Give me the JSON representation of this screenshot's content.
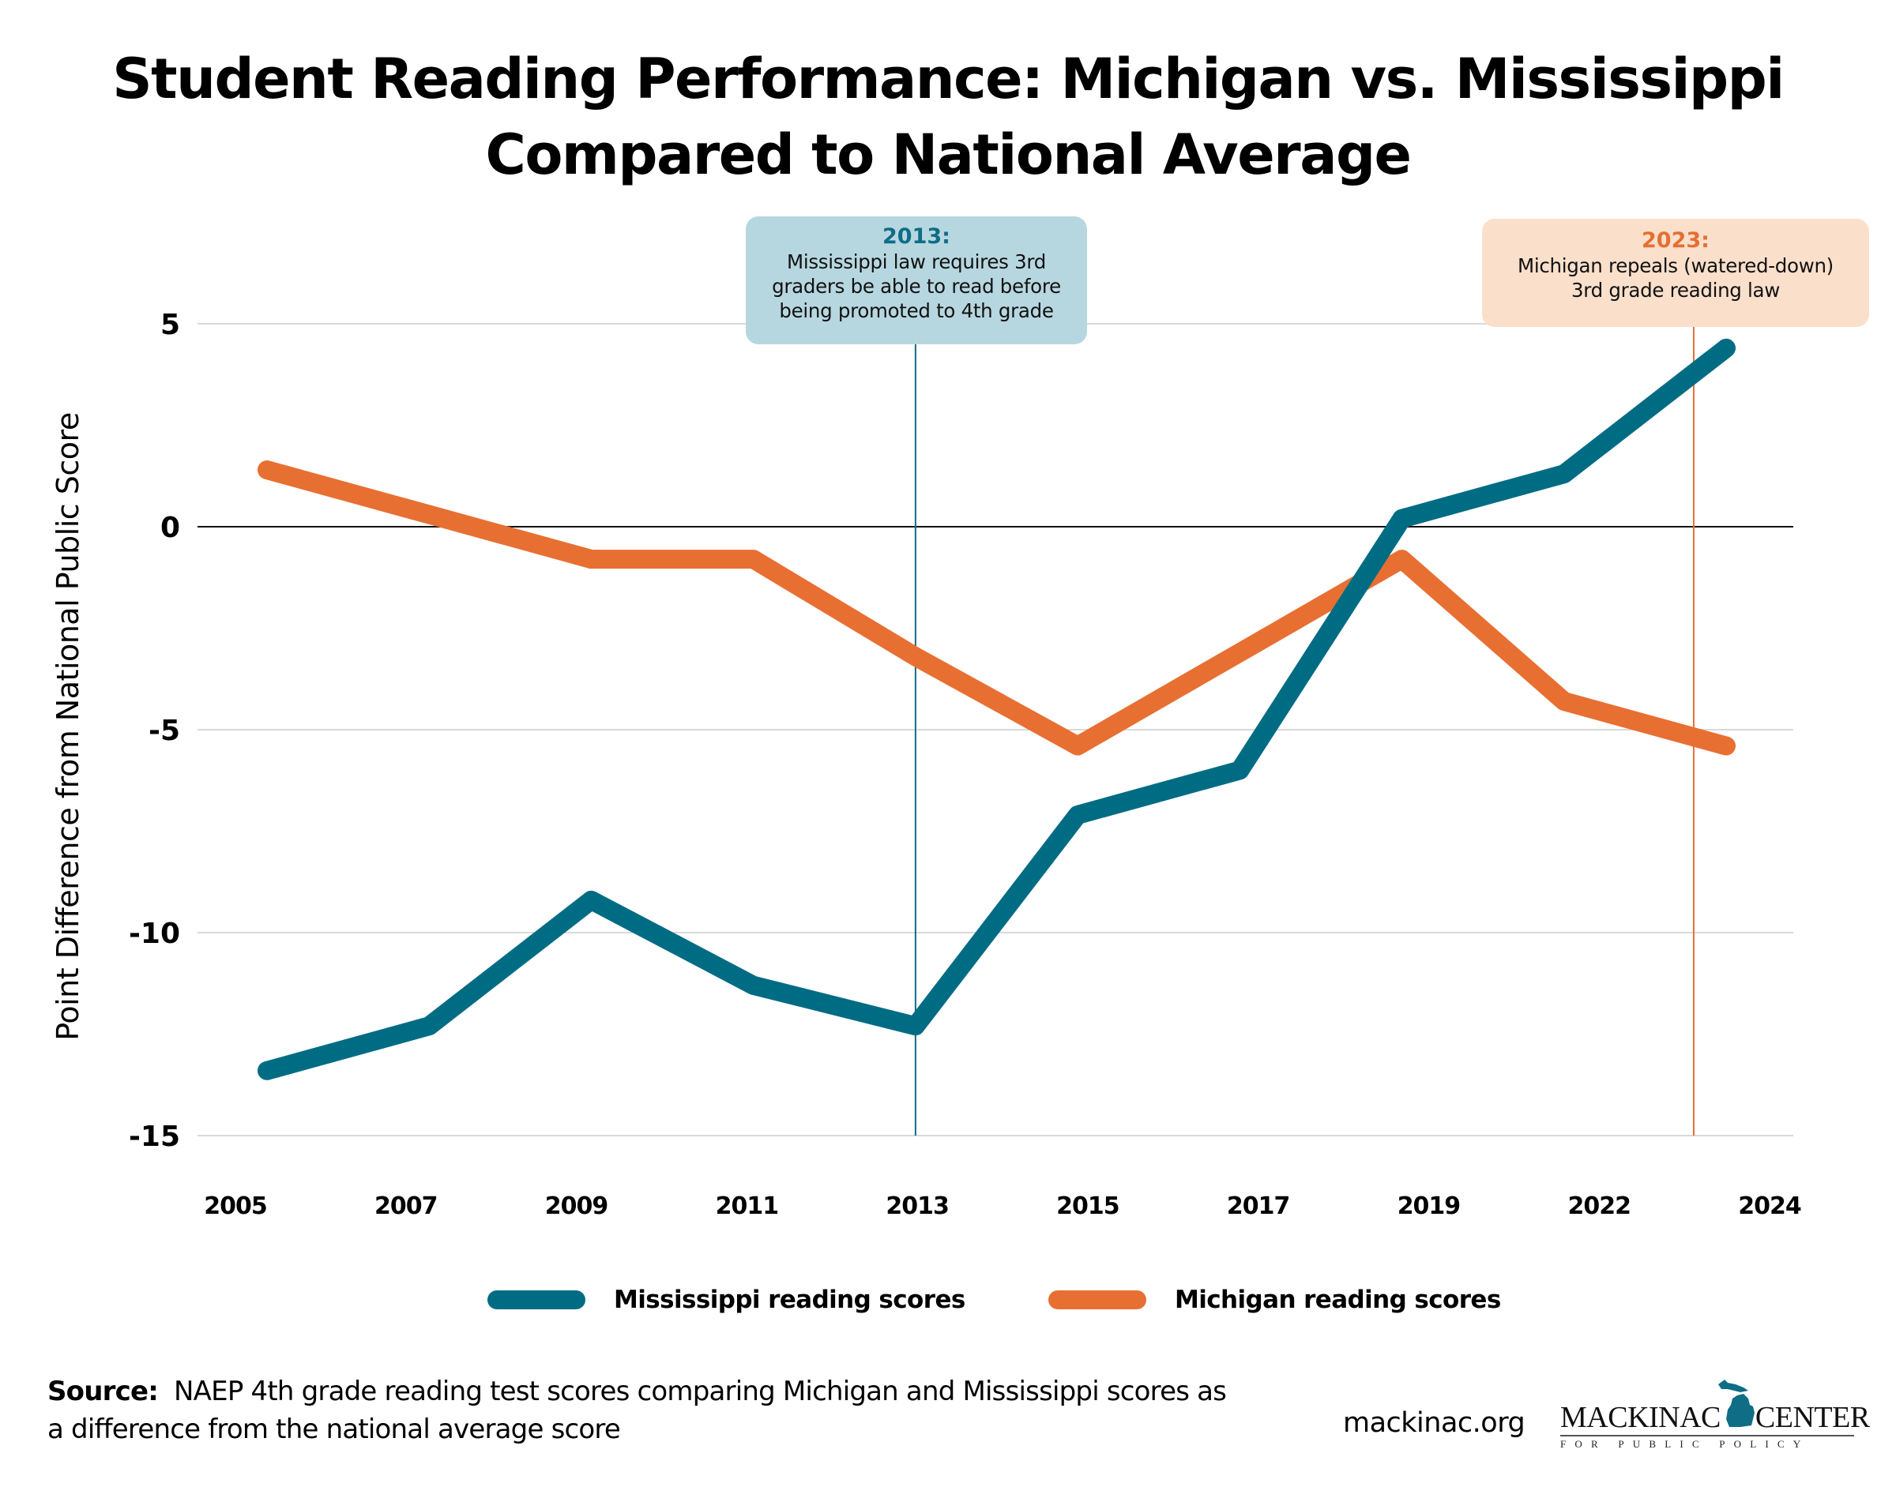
{
  "title": {
    "line1": "Student Reading Performance: Michigan vs. Mississippi",
    "line2": "Compared to National Average"
  },
  "annotations": [
    {
      "year_label": "2013:",
      "text_lines": [
        "Mississippi law requires 3rd",
        "graders be able to read before",
        "being promoted to 4th grade"
      ],
      "marker_year": "2013",
      "color": "#0f6d85",
      "background": "#b7d7e0"
    },
    {
      "year_label": "2023:",
      "text_lines": [
        "Michigan repeals (watered-down)",
        "3rd grade reading law"
      ],
      "marker_year": "2023",
      "color": "#e56f33",
      "background": "#fadfcb"
    }
  ],
  "legend": {
    "items": [
      {
        "label": "Mississippi reading scores",
        "color": "#006c84"
      },
      {
        "label": "Michigan reading scores",
        "color": "#e86f32"
      }
    ]
  },
  "source": {
    "label": "Source:",
    "text": "NAEP 4th grade reading test scores comparing Michigan and Mississippi scores as a difference from the national average score"
  },
  "footer": {
    "site": "mackinac.org",
    "logo_main_left": "MACKINAC",
    "logo_main_right": "CENTER",
    "logo_sub": "FOR PUBLIC POLICY"
  },
  "chart_data": {
    "type": "line",
    "title": "Student Reading Performance: Michigan vs. Mississippi Compared to National Average",
    "xlabel": "",
    "ylabel": "Point Difference from National Public Score",
    "categories": [
      "2005",
      "2007",
      "2009",
      "2011",
      "2013",
      "2015",
      "2017",
      "2019",
      "2022",
      "2024"
    ],
    "yticks": [
      5,
      0,
      -5,
      -10,
      -15
    ],
    "ylim": [
      -15,
      5
    ],
    "grid": true,
    "zero_line": true,
    "legend_position": "bottom",
    "series": [
      {
        "name": "Mississippi reading scores",
        "color": "#006c84",
        "values": [
          -13.4,
          -12.3,
          -9.2,
          -11.3,
          -12.3,
          -7.1,
          -6.0,
          0.2,
          1.3,
          4.4
        ]
      },
      {
        "name": "Michigan reading scores",
        "color": "#e86f32",
        "values": [
          1.4,
          0.3,
          -0.8,
          -0.8,
          -3.2,
          -5.4,
          -3.1,
          -0.8,
          -4.3,
          -5.4
        ]
      }
    ],
    "reference_lines": [
      {
        "x": "2013",
        "color": "#0f6d85",
        "label": "2013: Mississippi law requires 3rd graders be able to read before being promoted to 4th grade"
      },
      {
        "x_between": [
          "2022",
          "2024"
        ],
        "position_fraction": 0.8,
        "year": "2023",
        "color": "#e56f33",
        "label": "2023: Michigan repeals (watered-down) 3rd grade reading law"
      }
    ]
  }
}
